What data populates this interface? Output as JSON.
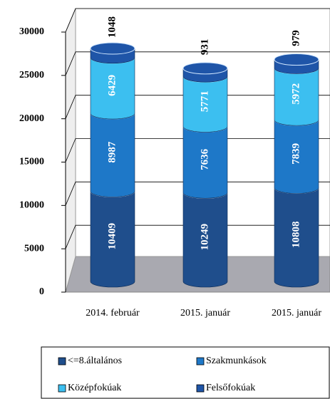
{
  "chart_data": {
    "type": "bar",
    "categories": [
      "2014. február",
      "2015. január",
      "2015. január"
    ],
    "series": [
      {
        "name": "<=8.általános",
        "color": "#1f4e8c",
        "values": [
          10409,
          10249,
          10808
        ]
      },
      {
        "name": "Szakmunkások",
        "color": "#1e78c8",
        "values": [
          8987,
          7636,
          7839
        ]
      },
      {
        "name": "Középfokúak",
        "color": "#3cbff0",
        "values": [
          6429,
          5771,
          5972
        ]
      },
      {
        "name": "Felsőfokúak",
        "color": "#1f55a8",
        "values": [
          1048,
          931,
          979
        ]
      }
    ],
    "stacked": true,
    "ylim": [
      0,
      30000
    ],
    "yticks": [
      0,
      5000,
      10000,
      15000,
      20000,
      25000,
      30000
    ],
    "grid": true
  }
}
